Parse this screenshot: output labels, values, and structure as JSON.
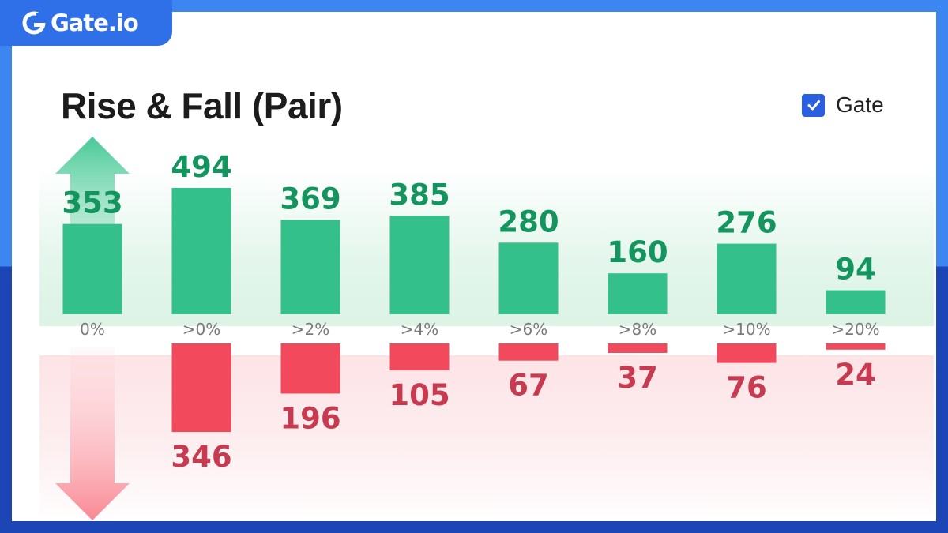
{
  "brand": {
    "logo_text": "Gate.io"
  },
  "title": "Rise & Fall (Pair)",
  "legend": {
    "label": "Gate",
    "checked": true
  },
  "colors": {
    "rise": "#33c08a",
    "rise_label": "#14955e",
    "fall": "#f24a5c",
    "fall_label": "#c73a4f",
    "legend_box": "#2c5fe0"
  },
  "chart_data": {
    "type": "bar",
    "categories": [
      "0%",
      ">0%",
      ">2%",
      ">4%",
      ">6%",
      ">8%",
      ">10%",
      ">20%"
    ],
    "series": [
      {
        "name": "Rise",
        "values": [
          353,
          494,
          369,
          385,
          280,
          160,
          276,
          94
        ]
      },
      {
        "name": "Fall",
        "values": [
          null,
          346,
          196,
          105,
          67,
          37,
          76,
          24
        ]
      }
    ],
    "title": "Rise & Fall (Pair)",
    "legend": [
      "Gate"
    ],
    "legend_position": "top-right",
    "grid": false
  }
}
